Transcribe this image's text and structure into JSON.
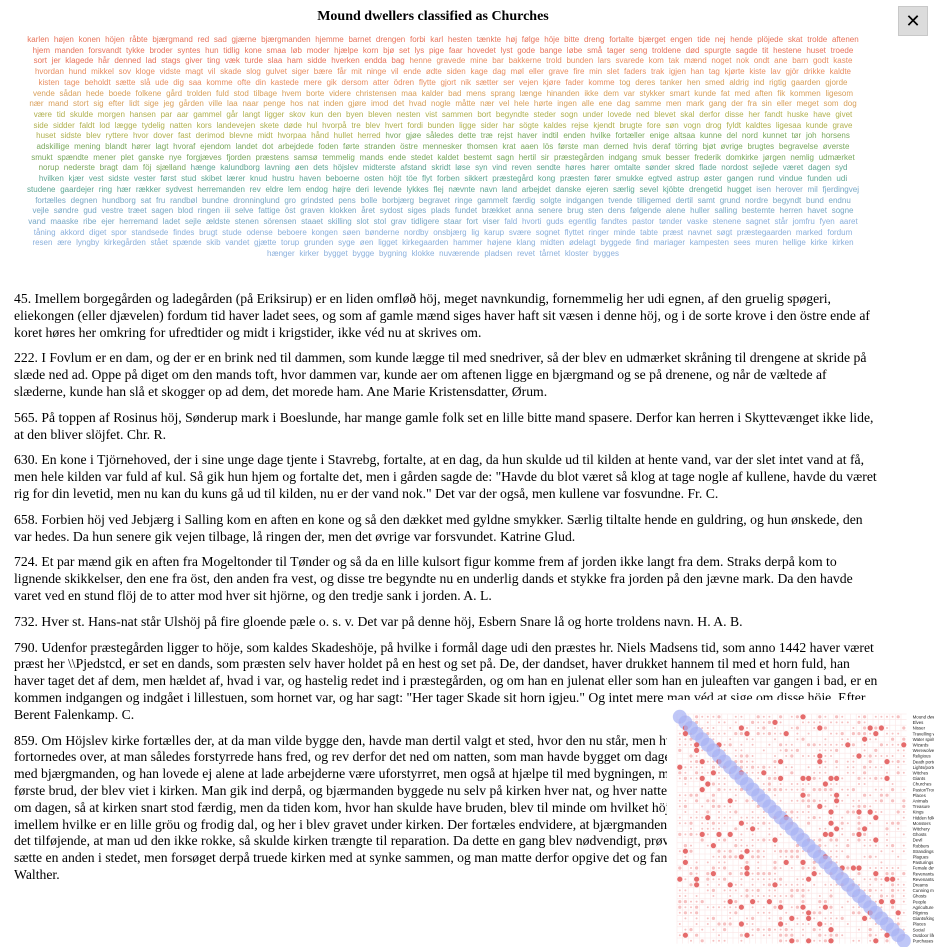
{
  "header": {
    "title": "Mound dwellers classified as Churches",
    "close_glyph": "✕"
  },
  "wordcloud": {
    "colors": [
      "#e8735a",
      "#e98f62",
      "#d9a05c",
      "#b1b04f",
      "#7aa85d",
      "#5ea592",
      "#78a8c6",
      "#8bb0dc"
    ],
    "words": [
      "karlen",
      "højen",
      "konen",
      "höjen",
      "råbte",
      "bjærgmand",
      "red",
      "sad",
      "gjærne",
      "bjærgmanden",
      "hjemme",
      "barnet",
      "drengen",
      "forbi",
      "karl",
      "hesten",
      "tænkte",
      "høj",
      "følge",
      "höje",
      "bitte",
      "dreng",
      "fortalte",
      "bjærget",
      "engen",
      "tide",
      "nej",
      "hende",
      "plöjede",
      "skat",
      "trolde",
      "aftenen",
      "hjem",
      "manden",
      "forsvandt",
      "tykke",
      "broder",
      "syntes",
      "hun",
      "tidlig",
      "kone",
      "smaa",
      "løb",
      "moder",
      "hjælpe",
      "korn",
      "bjø",
      "set",
      "lys",
      "pige",
      "faar",
      "hovedet",
      "lyst",
      "gode",
      "bange",
      "løbe",
      "små",
      "tager",
      "seng",
      "troldene",
      "død",
      "spurgte",
      "sagde",
      "tit",
      "hestene",
      "huset",
      "troede",
      "sort",
      "jer",
      "klagede",
      "hår",
      "denned",
      "lad",
      "stags",
      "giver",
      "ting",
      "væk",
      "turde",
      "slaa",
      "ham",
      "sidde",
      "hverken",
      "endda",
      "bag",
      "henne",
      "gravede",
      "mine",
      "bar",
      "bakkerne",
      "trold",
      "bunden",
      "lars",
      "svarede",
      "kom",
      "tak",
      "mænd",
      "noget",
      "nok",
      "ondt",
      "ane",
      "barn",
      "godt",
      "kaste",
      "hvordan",
      "hund",
      "mikkel",
      "sov",
      "kloge",
      "vidste",
      "magt",
      "vil",
      "skade",
      "slog",
      "gulvet",
      "siger",
      "bære",
      "får",
      "mit",
      "ninge",
      "vil",
      "ende",
      "ødte",
      "siden",
      "kage",
      "dag",
      "møl",
      "eller",
      "grave",
      "fire",
      "min",
      "slet",
      "faders",
      "trak",
      "igjen",
      "han",
      "tag",
      "kjørte",
      "kiste",
      "lav",
      "gjör",
      "drikke",
      "kaldte",
      "kisten",
      "tage",
      "beholdt",
      "sætte",
      "slå",
      "ude",
      "dig",
      "saa",
      "komme",
      "ofte",
      "din",
      "kastede",
      "mere",
      "gik",
      "dersom",
      "atter",
      "ödren",
      "flytte",
      "gjort",
      "nik",
      "sætter",
      "ser",
      "vejen",
      "kjøre",
      "fader",
      "komme",
      "tog",
      "deres",
      "tanker",
      "hen",
      "smed",
      "aldrig",
      "ind",
      "rigtig",
      "gaarden",
      "gjorde",
      "vende",
      "sådan",
      "hede",
      "boede",
      "folkene",
      "gård",
      "trolden",
      "fuld",
      "stod",
      "tilbage",
      "hvem",
      "borte",
      "videre",
      "christensen",
      "maa",
      "kalder",
      "bad",
      "mens",
      "sprang",
      "længe",
      "hinanden",
      "ikke",
      "dem",
      "var",
      "stykker",
      "smart",
      "kunde",
      "fat",
      "med",
      "aften",
      "fik",
      "kommen",
      "ligesom",
      "nær",
      "mand",
      "stort",
      "sig",
      "efter",
      "lidt",
      "sige",
      "jeg",
      "gården",
      "ville",
      "laa",
      "naar",
      "penge",
      "hos",
      "nat",
      "inden",
      "gjøre",
      "imod",
      "det",
      "hvad",
      "nogle",
      "måtte",
      "nær",
      "vel",
      "hele",
      "hørte",
      "ingen",
      "alle",
      "ene",
      "dag",
      "samme",
      "men",
      "mark",
      "gang",
      "der",
      "fra",
      "sin",
      "eller",
      "meget",
      "som",
      "dog",
      "være",
      "tid",
      "skulde",
      "morgen",
      "hansen",
      "par",
      "aar",
      "gammel",
      "går",
      "langt",
      "ligger",
      "skov",
      "kun",
      "den",
      "byen",
      "bleven",
      "nesten",
      "vist",
      "sammen",
      "bort",
      "begyndte",
      "steder",
      "sogn",
      "under",
      "lovede",
      "ned",
      "blevet",
      "skal",
      "derfor",
      "disse",
      "her",
      "fandt",
      "huske",
      "have",
      "givet",
      "side",
      "sidder",
      "faldt",
      "lod",
      "lægge",
      "tydelig",
      "natten",
      "kors",
      "landevejen",
      "skete",
      "døde",
      "hul",
      "hvorpå",
      "tre",
      "blev",
      "hvert",
      "fordi",
      "bunden",
      "ligge",
      "sider",
      "har",
      "sögte",
      "kaldes",
      "rejse",
      "kjendt",
      "brugte",
      "fore",
      "søn",
      "vogn",
      "drog",
      "fyldt",
      "kaldtes",
      "ligesaa",
      "kunde",
      "grave",
      "huset",
      "sidste",
      "blev",
      "ryttere",
      "hvor",
      "dover",
      "fast",
      "derimod",
      "blevne",
      "midt",
      "hvorpaa",
      "hånd",
      "hullet",
      "herred",
      "hvor",
      "gjøe",
      "således",
      "dette",
      "træ",
      "rejst",
      "haver",
      "indtil",
      "enden",
      "hvilke",
      "fortæller",
      "enige",
      "altsaa",
      "kunne",
      "del",
      "nord",
      "kunnet",
      "tør",
      "joh",
      "horsens",
      "adskillige",
      "mening",
      "blandt",
      "hører",
      "lagt",
      "hvoraf",
      "ejendom",
      "landet",
      "dot",
      "arbejdede",
      "foden",
      "førte",
      "stranden",
      "östre",
      "mennesker",
      "thomsen",
      "krat",
      "aaen",
      "lös",
      "første",
      "man",
      "derned",
      "hvis",
      "deraf",
      "törring",
      "bjøt",
      "øvrige",
      "brugtes",
      "begravelse",
      "øverste",
      "smukt",
      "spændte",
      "mener",
      "plet",
      "ganske",
      "nye",
      "forgjæves",
      "fjorden",
      "præstens",
      "samsø",
      "temmelig",
      "mands",
      "ende",
      "stedet",
      "kaldet",
      "bestemt",
      "sagn",
      "hertil",
      "sir",
      "præstegården",
      "indgang",
      "smuk",
      "besser",
      "frederik",
      "domkirke",
      "jørgen",
      "nemlig",
      "udmærket",
      "norup",
      "nederste",
      "bragt",
      "dam",
      "föj",
      "sjælland",
      "hænge",
      "kalundborg",
      "lavning",
      "øen",
      "dets",
      "höjslev",
      "midterste",
      "afstand",
      "skridt",
      "løse",
      "syn",
      "vind",
      "reven",
      "sendte",
      "høres",
      "hører",
      "omtalte",
      "sønder",
      "skred",
      "flade",
      "nordost",
      "sejlede",
      "været",
      "dagen",
      "syd",
      "hvilken",
      "kjær",
      "vest",
      "sidste",
      "vester",
      "først",
      "stud",
      "skibet",
      "lærer",
      "knud",
      "hustru",
      "haven",
      "beboerne",
      "osten",
      "höjt",
      "töe",
      "flyt",
      "forben",
      "sikkert",
      "præstegård",
      "kong",
      "præsten",
      "fører",
      "smukke",
      "egtved",
      "astrup",
      "øster",
      "gangen",
      "rund",
      "vindue",
      "funden",
      "udi",
      "studene",
      "gaardejer",
      "ring",
      "hær",
      "rækker",
      "sydvest",
      "herremanden",
      "rev",
      "eldre",
      "lem",
      "endog",
      "højre",
      "deri",
      "levende",
      "lykkes",
      "flej",
      "nævnte",
      "navn",
      "land",
      "arbejdet",
      "danske",
      "ejeren",
      "særlig",
      "sevel",
      "kjöbte",
      "drengetid",
      "hugget",
      "isen",
      "herover",
      "mil",
      "fjerdingvej",
      "fortælles",
      "degnen",
      "hundborg",
      "sat",
      "fru",
      "randbøl",
      "bundne",
      "dronninglund",
      "gro",
      "grindsted",
      "pens",
      "bolle",
      "borbjærg",
      "begravet",
      "ringe",
      "gammelt",
      "færdig",
      "solgte",
      "indgangen",
      "tvende",
      "tilligemed",
      "dertil",
      "samt",
      "grund",
      "nordre",
      "begyndt",
      "bund",
      "endnu",
      "vejle",
      "søndre",
      "gud",
      "vestre",
      "træet",
      "sagen",
      "blod",
      "ringen",
      "iii",
      "selve",
      "fattige",
      "öst",
      "graven",
      "klokken",
      "året",
      "sydost",
      "siges",
      "plads",
      "fundet",
      "brækket",
      "anna",
      "senere",
      "brug",
      "sten",
      "dens",
      "følgende",
      "alene",
      "huller",
      "salling",
      "bestemte",
      "herren",
      "havet",
      "sogne",
      "vand",
      "maaske",
      "ribe",
      "ejer",
      "herremand",
      "ladet",
      "sejle",
      "ældste",
      "stenen",
      "sörensen",
      "staaet",
      "skilling",
      "slot",
      "stol",
      "grav",
      "tidligere",
      "staar",
      "fort",
      "viser",
      "fald",
      "hvorti",
      "guds",
      "egentlig",
      "fandtes",
      "pastor",
      "tønder",
      "vaske",
      "stenene",
      "sagnet",
      "står",
      "jomfru",
      "fyen",
      "aaret",
      "tåning",
      "akkord",
      "diget",
      "spor",
      "standsede",
      "findes",
      "brugt",
      "stude",
      "odense",
      "beboere",
      "kongen",
      "søen",
      "bønderne",
      "nordby",
      "onsbjærg",
      "lig",
      "karup",
      "svære",
      "sognet",
      "flyttet",
      "ringer",
      "minde",
      "tabte",
      "præst",
      "navnet",
      "søgt",
      "præstegaarden",
      "marked",
      "fordum",
      "resen",
      "ære",
      "lyngby",
      "kirkegården",
      "stået",
      "spænde",
      "skib",
      "vandet",
      "gjætte",
      "torup",
      "grunden",
      "syge",
      "øen",
      "ligget",
      "kirkegaarden",
      "hammer",
      "højene",
      "klang",
      "midten",
      "ødelagt",
      "byggede",
      "find",
      "mariager",
      "kampesten",
      "sees",
      "muren",
      "hellige",
      "kirke",
      "kirken",
      "hænger",
      "kirker",
      "bygget",
      "bygge",
      "bygning",
      "klokke",
      "nuværende",
      "pladsen",
      "revet",
      "tårnet",
      "kloster",
      "bygges"
    ]
  },
  "passages": [
    "45. Imellem borgegården og ladegården (på Eriksirup) er en liden omfløð höj, meget navnkundig, fornemmelig her udi egnen, af den gruelig spøgeri, eliekongen (eller djævelen) fordum tid haver ladet sees, og som af gamle mænd siges haver haft sit væsen i denne höj, og i de sorte krove i den östre ende af koret høres her omkring for ufredtider og midt i krigstider, ikke véd nu at skrives om.",
    "222. I Fovlum er en dam, og der er en brink ned til dammen, som kunde lægge til med snedriver, så der blev en udmærket skråning til drengene at skride på slæde ned ad. Oppe på diget om den mands toft, hvor dammen var, kunde aer om aftenen ligge en bjærgmand og se på drenene, og når de væltede af slæderne, kunde han slå et skogger op ad dem, det morede ham. Ane Marie Kristensdatter, Ørum.",
    "565. På toppen af Rosinus höj, Sønderup mark i Boeslunde, har mange gamle folk set en lille bitte mand spasere. Derfor kan herren i Skyttevænget ikke lide, at den bliver slöjfet. Chr. R.",
    "630. En kone i Tjörnehoved, der i sine unge dage tjente i Stavrebg, fortalte, at en dag, da hun skulde ud til kilden at hente vand, var der slet intet vand at få, men hele kilden var fuld af kul. Så gik hun hjem og fortalte det, men i gården sagde de: \"Havde du blot været så klog at tage nogle af kullene, havde du været rig for din levetid, men nu kan du kuns gå ud til kilden, nu er der vand nok.\" Det var der også, men kullene var fosvundne. Fr. C.",
    "658. Forbien höj ved Jebjærg i Salling kom en aften en kone og så den dækket med gyldne smykker. Særlig tiltalte hende en guldring, og hun ønskede, den var hedes. Da hun senere gik vejen tilbage, lå ringen der, men det øvrige var forsvundet. Katrine Glud.",
    "724. Et par mænd gik en aften fra Mogeltonder til Tønder og så da en lille kulsort figur komme frem af jorden ikke langt fra dem. Straks derpå kom to lignende skikkelser, den ene fra öst, den anden fra vest, og disse tre begyndte nu en underlig dands et stykke fra jorden på den jævne mark. Da den havde varet ved en stund flöj de to atter mod hver sit hjörne, og den tredje sank i jorden. A. L.",
    "732. Hver st. Hans-nat står Ulshöj på fire gloende pæle o. s. v. Det var på denne höj, Esbern Snare lå og horte troldens navn. H. A. B.",
    "790. Udenfor præstegården ligger to höje, som kaldes Skadeshöje, på hvilke i formål dage udi den præstes hr. Niels Madsens tid, som anno 1442 haver været præst her \\\\Pjedstcd, er set en dands, som præsten selv haver holdet på en hest og set på. De, der dandset, haver drukket hannem til med et horn fuld, han haver taget det af dem, men hældet af, hvad i var, og hastelig redet ind i præstegården, og om han en julenat eller som han en juleaften var gangen i bad, er en kommen indgangen og indgået i lillestuen, som hornet var, og har sagt: \"Her tager Skade sit horn igjeu.\" Og intet mere man véd at sige om disse höje. Efter Berent Falenkamp. C.",
    "859. Om Höjslev kirke fortælles der, at da man vilde bygge den, havde man dertil valgt et sted, hvor den nu står, men hvad der om dagen blev opført, fortornedes over, at man således forstyrrede hans fred, og rev derfor det ned om natten, som man havde bygget om dagen. Da gik præsten ud i underhandling med bjærgmanden, og han lovede ej alene at lade arbejderne være uforstyrret, men også at hjælpe til med bygningen, men på den betingelse, at ban fik den første brud, der blev viet i kirken. Man gik ind derpå, og bjærmanden byggede nu selv på kirken hver nat, og hver natten, som de mange havde kunuet bygge om dagen, så at kirken snart stod færdig, men da tiden kom, hvor han skulde have bruden, blev til minde om hvilket höje lynbakker öst for Höjslev by, imellem hvilke er en lille gröu og frodig dal, og her i blev gravet under kirken. Der fortæles endvidere, at bjærgmanden indmurede en stor sten i kirken med det tilføjende, at man ud den ikke rokke, så skulde kirken trængte til reparation. Da dette en gang blev nødvendigt, prøvede man på at udtage stenen for at sætte en anden i stedet, men forsøget derpå truede kirken med at synke sammen, og man matte derfor opgive det og fandt således stenen sidder endnu. Efter Walther."
  ],
  "matrix": {
    "labels": [
      "Mound dwellers",
      "Elves",
      "Nisser",
      "Travelling women",
      "Water spirits",
      "Wizards",
      "Werewolves",
      "Religious",
      "Death portents",
      "Lights/portents",
      "Witches",
      "Giants",
      "Churches",
      "Pastor/Trovers",
      "Places",
      "Animals",
      "Treasure",
      "Kings",
      "Hidden folk",
      "Monsters",
      "Witchery",
      "Ghosts",
      "Devil",
      "Robbers",
      "Strandings",
      "Plagues",
      "Pasturings",
      "Female devourers",
      "Revenants/Land",
      "Revenants/Place",
      "Dreams",
      "Cunning men",
      "Ghosts",
      "People",
      "Agriculture",
      "Pilgrims",
      "Giants/kings",
      "Places",
      "Social",
      "Outdoor life",
      "Purchases"
    ],
    "diag_color": "#aab4f4",
    "off_color": "#ef8c8c",
    "bold_color": "#e25b5b"
  }
}
